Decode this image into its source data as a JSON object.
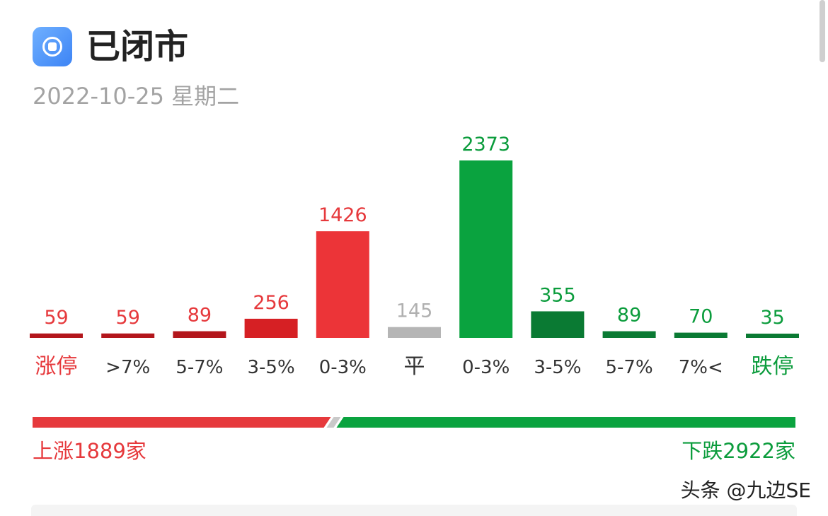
{
  "header": {
    "icon": "record-icon",
    "status": "已闭市",
    "date": "2022-10-25 星期二"
  },
  "colors": {
    "up": "#e6393c",
    "up_dark": "#d62024",
    "up_darkest": "#b3161c",
    "flat": "#b5b5b5",
    "down": "#0aa33f",
    "down_dark": "#0a7a33",
    "summary_up": "#e6393c",
    "summary_down": "#0b9c3c"
  },
  "chart_data": {
    "type": "bar",
    "categories": [
      "涨停",
      ">7%",
      "5-7%",
      "3-5%",
      "0-3%",
      "平",
      "0-3%",
      "3-5%",
      "5-7%",
      "7%<",
      "跌停"
    ],
    "values": [
      59,
      59,
      89,
      256,
      1426,
      145,
      2373,
      355,
      89,
      70,
      35
    ],
    "bar_colors": [
      "#b3161c",
      "#b3161c",
      "#b3161c",
      "#d62024",
      "#ec3438",
      "#b5b5b5",
      "#0aa33f",
      "#0a7a33",
      "#0a7a33",
      "#0a7a33",
      "#0a7a33"
    ],
    "label_colors": [
      "#e6393c",
      "#e6393c",
      "#e6393c",
      "#e6393c",
      "#e6393c",
      "#b0b0b0",
      "#0b9c3c",
      "#0b9c3c",
      "#0b9c3c",
      "#0b9c3c",
      "#0b9c3c"
    ],
    "category_colors": [
      "#e6393c",
      "#333333",
      "#333333",
      "#333333",
      "#333333",
      "#333333",
      "#333333",
      "#333333",
      "#333333",
      "#333333",
      "#0b9c3c"
    ],
    "grid": false,
    "legend": "none"
  },
  "summary": {
    "up_label": "上涨1889家",
    "down_label": "下跌2922家",
    "up_count": 1889,
    "down_count": 2922
  },
  "watermark": "头条 @九边SE"
}
